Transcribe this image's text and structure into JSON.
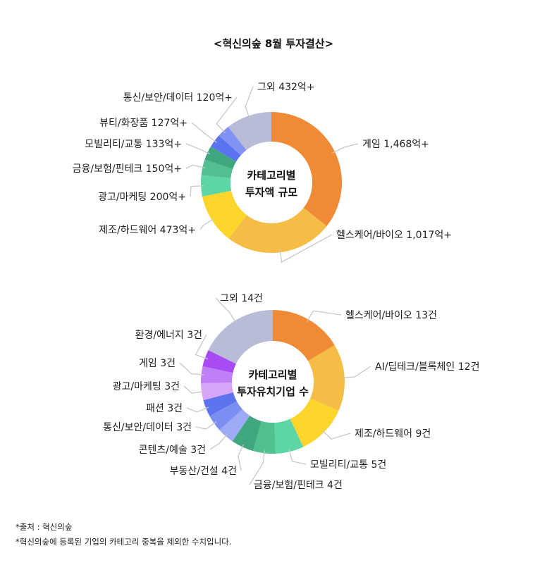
{
  "title": "<혁신의숲 8월 투자결산>",
  "chart_data": [
    {
      "type": "donut",
      "center_label": [
        "카테고리별",
        "투자액 규모"
      ],
      "slices": [
        {
          "label": "게임 1,468억+",
          "value": 1468,
          "color": "#F08A35"
        },
        {
          "label": "헬스케어/바이오 1,017억+",
          "value": 1017,
          "color": "#F5BC46"
        },
        {
          "label": "제조/하드웨어 473억+",
          "value": 473,
          "color": "#FDD52B"
        },
        {
          "label": "광고/마케팅 200억+",
          "value": 200,
          "color": "#5DD6A6"
        },
        {
          "label": "금융/보험/핀테크 150억+",
          "value": 150,
          "color": "#52BE92"
        },
        {
          "label": "모빌리티/교통 133억+",
          "value": 133,
          "color": "#3FA67D"
        },
        {
          "label": "뷰티/화장품 127억+",
          "value": 127,
          "color": "#5A73EE"
        },
        {
          "label": "통신/보안/데이터 120억+",
          "value": 120,
          "color": "#8092F4"
        },
        {
          "label": "그외 432억+",
          "value": 432,
          "color": "#B8BCD6"
        }
      ]
    },
    {
      "type": "donut",
      "center_label": [
        "카테고리별",
        "투자유치기업 수"
      ],
      "slices": [
        {
          "label": "헬스케어/바이오 13건",
          "value": 13,
          "color": "#F08A35"
        },
        {
          "label": "AI/딥테크/블록체인 12건",
          "value": 12,
          "color": "#F5BC46"
        },
        {
          "label": "제조/하드웨어 9건",
          "value": 9,
          "color": "#FDD52B"
        },
        {
          "label": "모빌리티/교통 5건",
          "value": 5,
          "color": "#5DD6A6"
        },
        {
          "label": "금융/보험/핀테크 4건",
          "value": 4,
          "color": "#4FC08E"
        },
        {
          "label": "부동산/건설 4건",
          "value": 4,
          "color": "#3FA67D"
        },
        {
          "label": "콘텐츠/예술 3건",
          "value": 3,
          "color": "#9DAAF5"
        },
        {
          "label": "통신/보안/데이터 3건",
          "value": 3,
          "color": "#7B8EF2"
        },
        {
          "label": "패션 3건",
          "value": 3,
          "color": "#5C74EE"
        },
        {
          "label": "광고/마케팅 3건",
          "value": 3,
          "color": "#D7A6FA"
        },
        {
          "label": "게임 3건",
          "value": 3,
          "color": "#C07FF7"
        },
        {
          "label": "환경/에너지 3건",
          "value": 3,
          "color": "#A94BF3"
        },
        {
          "label": "그외 14건",
          "value": 14,
          "color": "#B8BCD6"
        }
      ]
    }
  ],
  "footnotes": [
    "*출처 : 혁신의숲",
    "*혁신의숲에 등록된 기업의 카테고리 중복을 제외한 수치입니다."
  ]
}
